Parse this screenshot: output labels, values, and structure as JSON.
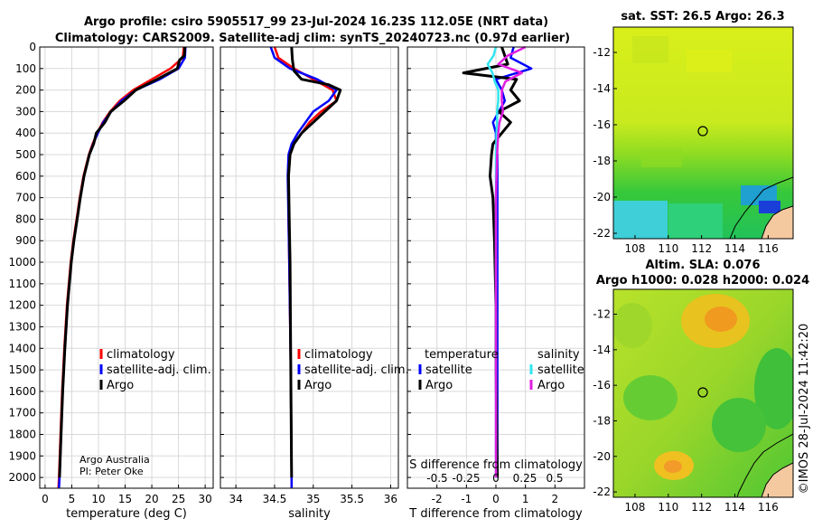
{
  "titles": {
    "line1": "Argo profile: csiro 5905517_99 23-Jul-2024 16.23S 112.05E (NRT data)",
    "line2": "Climatology: CARS2009. Satellite-adj clim: synTS_20240723.nc (0.97d earlier)"
  },
  "colors": {
    "red": "#ff0000",
    "blue": "#0000ff",
    "black": "#000000",
    "cyan": "#33e6ee",
    "magenta": "#e01ee0",
    "land": "#f5c9a0",
    "grid": "#d9d9d9"
  },
  "credit": {
    "line1": "Argo Australia",
    "line2": "PI: Peter Oke"
  },
  "stamp": "©IMOS 28-Jul-2024 11:42:20",
  "chart_data": [
    {
      "type": "line",
      "id": "temperature",
      "xlabel": "temperature (deg C)",
      "ylabel": "",
      "xlim": [
        -1,
        31.5
      ],
      "ylim": [
        2050,
        0
      ],
      "x_ticks": [
        0,
        5,
        10,
        15,
        20,
        25,
        30
      ],
      "y_ticks": [
        0,
        100,
        200,
        300,
        400,
        500,
        600,
        700,
        800,
        900,
        1000,
        1100,
        1200,
        1300,
        1400,
        1500,
        1600,
        1700,
        1800,
        1900,
        2000
      ],
      "legend": {
        "placement": "center-right",
        "entries": [
          "climatology",
          "satellite-adj. clim.",
          "Argo"
        ]
      },
      "series": [
        {
          "name": "climatology",
          "color": "red",
          "depth": [
            0,
            50,
            100,
            150,
            200,
            250,
            300,
            350,
            400,
            450,
            500,
            600,
            700,
            800,
            900,
            1000,
            1200,
            1400,
            1600,
            1800,
            2000,
            2050
          ],
          "values": [
            26.0,
            25.8,
            23.5,
            20.0,
            16.5,
            14.0,
            12.2,
            10.8,
            9.8,
            8.9,
            8.2,
            7.2,
            6.5,
            5.9,
            5.3,
            4.8,
            4.1,
            3.6,
            3.2,
            2.9,
            2.6,
            2.5
          ]
        },
        {
          "name": "satellite-adj. clim.",
          "color": "blue",
          "depth": [
            0,
            50,
            100,
            150,
            200,
            250,
            300,
            350,
            400,
            450,
            500,
            600,
            700,
            800,
            900,
            1000,
            1200,
            1400,
            1600,
            1800,
            2000,
            2050
          ],
          "values": [
            26.3,
            26.2,
            25.0,
            21.5,
            17.0,
            14.3,
            12.4,
            10.9,
            9.9,
            9.0,
            8.3,
            7.3,
            6.6,
            6.0,
            5.4,
            4.9,
            4.2,
            3.7,
            3.3,
            3.0,
            2.7,
            2.6
          ]
        },
        {
          "name": "Argo",
          "color": "black",
          "depth": [
            0,
            40,
            60,
            100,
            150,
            200,
            250,
            300,
            350,
            400,
            450,
            500,
            600,
            700,
            800,
            900,
            1000,
            1200,
            1400,
            1600,
            1800,
            2000
          ],
          "values": [
            26.2,
            26.1,
            25.2,
            24.8,
            21.0,
            17.0,
            14.8,
            12.3,
            11.2,
            9.6,
            9.1,
            8.3,
            7.3,
            6.6,
            6.0,
            5.4,
            4.9,
            4.2,
            3.7,
            3.3,
            3.0,
            2.7
          ]
        }
      ]
    },
    {
      "type": "line",
      "id": "salinity",
      "xlabel": "salinity",
      "xlim": [
        33.8,
        36.1
      ],
      "ylim": [
        2050,
        0
      ],
      "x_ticks": [
        34,
        34.5,
        35,
        35.5,
        36
      ],
      "legend": {
        "placement": "center-right",
        "entries": [
          "climatology",
          "satellite-adj. clim.",
          "Argo"
        ]
      },
      "series": [
        {
          "name": "climatology",
          "color": "red",
          "depth": [
            0,
            50,
            100,
            150,
            200,
            250,
            300,
            350,
            400,
            450,
            500,
            600,
            800,
            1000,
            1500,
            2000,
            2050
          ],
          "values": [
            34.5,
            34.55,
            34.75,
            35.0,
            35.25,
            35.3,
            35.1,
            34.95,
            34.85,
            34.75,
            34.7,
            34.68,
            34.68,
            34.69,
            34.71,
            34.72,
            34.72
          ]
        },
        {
          "name": "satellite-adj. clim.",
          "color": "blue",
          "depth": [
            0,
            50,
            100,
            150,
            200,
            250,
            300,
            350,
            400,
            450,
            500,
            600,
            800,
            1000,
            1500,
            2000,
            2050
          ],
          "values": [
            34.45,
            34.5,
            34.7,
            35.05,
            35.3,
            35.2,
            35.0,
            34.9,
            34.8,
            34.72,
            34.68,
            34.67,
            34.68,
            34.69,
            34.71,
            34.72,
            34.72
          ]
        },
        {
          "name": "Argo",
          "color": "black",
          "depth": [
            0,
            60,
            110,
            150,
            175,
            200,
            250,
            300,
            350,
            400,
            450,
            500,
            600,
            800,
            1000,
            1500,
            2000
          ],
          "values": [
            34.72,
            34.73,
            34.75,
            34.85,
            35.2,
            35.35,
            35.3,
            35.15,
            35.0,
            34.85,
            34.75,
            34.7,
            34.68,
            34.69,
            34.7,
            34.71,
            34.72
          ]
        }
      ]
    },
    {
      "type": "line",
      "id": "difference",
      "xlabel": "T difference from climatology",
      "x2label": "S difference from climatology",
      "xlim": [
        -3,
        3
      ],
      "x2lim": [
        -0.75,
        0.75
      ],
      "ylim": [
        2050,
        0
      ],
      "x_ticks": [
        -2,
        -1,
        0,
        1,
        2
      ],
      "x2_ticks": [
        "-0.5",
        "-0.25",
        "0",
        "0.25",
        "0.5"
      ],
      "legend": {
        "placement": "center",
        "headers": [
          "temperature",
          "salinity"
        ],
        "entries": [
          "satellite",
          "Argo",
          "satellite",
          "Argo"
        ]
      },
      "series": [
        {
          "name": "temperature satellite",
          "color": "blue",
          "depth": [
            0,
            50,
            100,
            150,
            200,
            250,
            300,
            350,
            400,
            450,
            500,
            600,
            800,
            1000,
            1500,
            2000
          ],
          "values": [
            0.6,
            0.5,
            1.2,
            0.0,
            0.2,
            0.3,
            0.1,
            -0.1,
            0.0,
            0.0,
            0.05,
            0.05,
            0.05,
            0.05,
            0.05,
            0.05
          ]
        },
        {
          "name": "temperature Argo",
          "color": "black",
          "depth": [
            0,
            40,
            80,
            120,
            150,
            200,
            250,
            300,
            350,
            400,
            450,
            500,
            600,
            700,
            900,
            1200,
            1500,
            2000
          ],
          "values": [
            0.2,
            0.3,
            0.4,
            -1.1,
            0.7,
            0.5,
            0.8,
            0.1,
            0.5,
            0.2,
            -0.1,
            -0.15,
            -0.2,
            -0.1,
            -0.05,
            0.0,
            0.0,
            0.05
          ]
        },
        {
          "name": "salinity satellite",
          "color": "cyan",
          "depth": [
            0,
            40,
            80,
            120,
            160,
            200,
            250,
            300,
            350,
            400,
            500,
            700,
            1000,
            1500,
            2000
          ],
          "values": [
            0.0,
            -0.02,
            -0.07,
            -0.03,
            -0.01,
            0.02,
            0.02,
            0.01,
            0.01,
            0.005,
            0.0,
            0.0,
            0.0,
            0.0,
            0.0
          ]
        },
        {
          "name": "salinity Argo",
          "color": "magenta",
          "depth": [
            0,
            40,
            80,
            120,
            160,
            200,
            250,
            300,
            350,
            400,
            500,
            700,
            1000,
            1500,
            2000
          ],
          "values": [
            0.25,
            0.1,
            0.02,
            0.22,
            0.08,
            0.05,
            0.05,
            0.06,
            0.03,
            0.02,
            0.01,
            0.0,
            0.0,
            0.0,
            0.0
          ]
        }
      ]
    },
    {
      "type": "heatmap",
      "id": "sst_map",
      "title": "sat. SST: 26.5 Argo: 26.3",
      "x_ticks": [
        108,
        110,
        112,
        114,
        116
      ],
      "y_ticks": [
        -12,
        -14,
        -16,
        -18,
        -20,
        -22
      ],
      "xlim": [
        106.7,
        117.5
      ],
      "ylim": [
        -22.3,
        -10.6
      ],
      "marker": {
        "lon": 112.05,
        "lat": -16.23
      }
    },
    {
      "type": "heatmap",
      "id": "sla_map",
      "title_line1": "Altim. SLA: 0.076",
      "title_line2": "Argo h1000: 0.028 h2000: 0.024",
      "x_ticks": [
        108,
        110,
        112,
        114,
        116
      ],
      "y_ticks": [
        -12,
        -14,
        -16,
        -18,
        -20,
        -22
      ],
      "xlim": [
        106.7,
        117.5
      ],
      "ylim": [
        -22.3,
        -10.6
      ],
      "marker": {
        "lon": 112.05,
        "lat": -16.23
      }
    }
  ]
}
